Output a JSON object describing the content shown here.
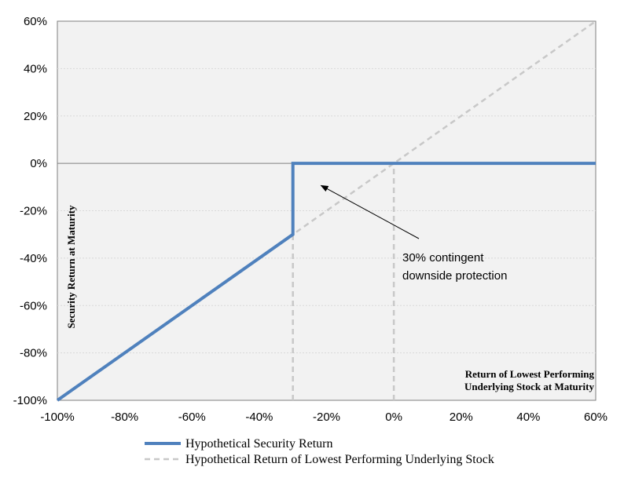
{
  "chart_data": {
    "type": "line",
    "xlabel": [
      "Return of Lowest Performing",
      "Underlying Stock at Maturity"
    ],
    "ylabel": "Security Return at Maturity",
    "xlim": [
      -100,
      60
    ],
    "ylim": [
      -100,
      60
    ],
    "x_ticks": [
      -100,
      -80,
      -60,
      -40,
      -20,
      0,
      20,
      40,
      60
    ],
    "y_ticks": [
      -100,
      -80,
      -60,
      -40,
      -20,
      0,
      20,
      40,
      60
    ],
    "x_tick_labels": [
      "-100%",
      "-80%",
      "-60%",
      "-40%",
      "-20%",
      "0%",
      "20%",
      "40%",
      "60%"
    ],
    "y_tick_labels": [
      "-100%",
      "-80%",
      "-60%",
      "-40%",
      "-20%",
      "0%",
      "20%",
      "40%",
      "60%"
    ],
    "grid": "horizontal",
    "legend_position": "bottom",
    "series": [
      {
        "name": "Hypothetical Security Return",
        "color": "#4f81bd",
        "style": "solid",
        "points": [
          [
            -100,
            -100
          ],
          [
            -30,
            -30
          ],
          [
            -30,
            0
          ],
          [
            60,
            0
          ]
        ]
      },
      {
        "name": "Hypothetical Return of Lowest Performing Underlying Stock",
        "color": "#c8c8c8",
        "style": "dashed",
        "points": [
          [
            -100,
            -100
          ],
          [
            60,
            60
          ]
        ]
      }
    ],
    "reference_lines": [
      {
        "x": -30,
        "from_y": -100,
        "to_y": -30,
        "color": "#c8c8c8",
        "style": "dashed"
      },
      {
        "x": 0,
        "from_y": -100,
        "to_y": 0,
        "color": "#c8c8c8",
        "style": "dashed"
      }
    ],
    "annotation": {
      "lines": [
        "30% contingent",
        "downside protection"
      ],
      "arrow_to": [
        -20,
        -10
      ]
    }
  }
}
